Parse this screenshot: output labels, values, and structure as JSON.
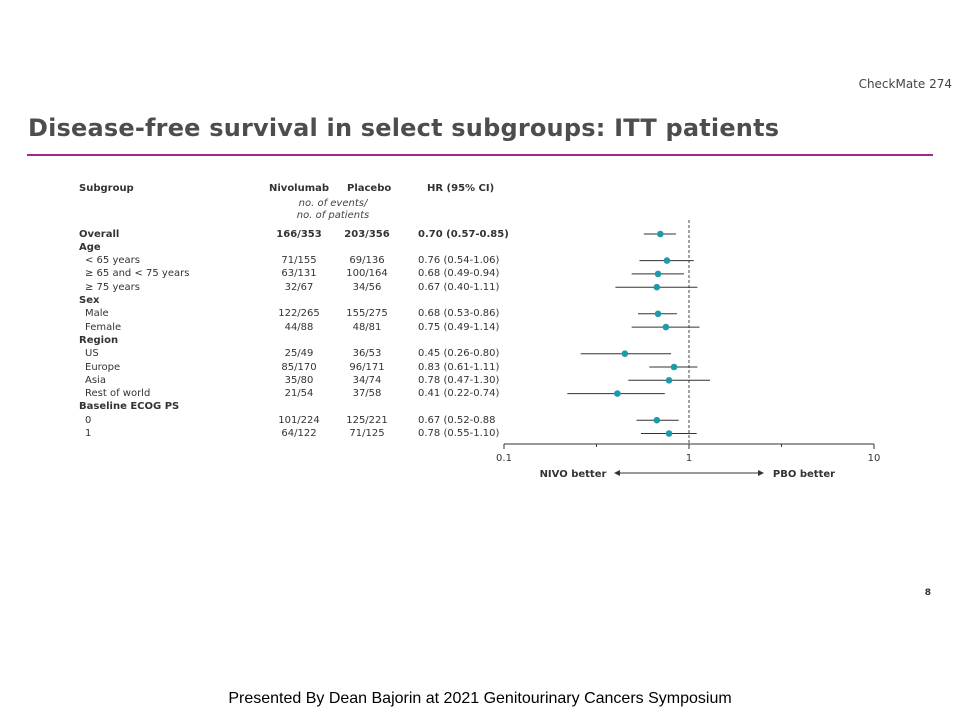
{
  "header": {
    "tag": "CheckMate 274",
    "title": "Disease-free survival in select subgroups: ITT patients"
  },
  "columns": {
    "subgroup": "Subgroup",
    "nivolumab": "Nivolumab",
    "placebo": "Placebo",
    "hr": "HR (95% CI)",
    "subheader_line1": "no. of events/",
    "subheader_line2": "no. of patients"
  },
  "chart_data": {
    "type": "forest",
    "x_scale": "log",
    "xlim": [
      0.1,
      10
    ],
    "x_ticks": [
      "0.1",
      "1",
      "10"
    ],
    "reference_line": 1,
    "direction_labels": {
      "left": "NIVO better",
      "right": "PBO better"
    },
    "rows": [
      {
        "label": "Overall",
        "bold": true,
        "nivo": "166/353",
        "pbo": "203/356",
        "hr_text": "0.70 (0.57-0.85)",
        "hr": 0.7,
        "lo": 0.57,
        "hi": 0.85
      },
      {
        "label": "Age",
        "bold": true,
        "header": true
      },
      {
        "label": "< 65 years",
        "nivo": "71/155",
        "pbo": "69/136",
        "hr_text": "0.76 (0.54-1.06)",
        "hr": 0.76,
        "lo": 0.54,
        "hi": 1.06
      },
      {
        "label": "≥ 65 and < 75 years",
        "nivo": "63/131",
        "pbo": "100/164",
        "hr_text": "0.68 (0.49-0.94)",
        "hr": 0.68,
        "lo": 0.49,
        "hi": 0.94
      },
      {
        "label": "≥ 75 years",
        "nivo": "32/67",
        "pbo": "34/56",
        "hr_text": "0.67 (0.40-1.11)",
        "hr": 0.67,
        "lo": 0.4,
        "hi": 1.11
      },
      {
        "label": "Sex",
        "bold": true,
        "header": true
      },
      {
        "label": "Male",
        "nivo": "122/265",
        "pbo": "155/275",
        "hr_text": "0.68 (0.53-0.86)",
        "hr": 0.68,
        "lo": 0.53,
        "hi": 0.86
      },
      {
        "label": "Female",
        "nivo": "44/88",
        "pbo": "48/81",
        "hr_text": "0.75 (0.49-1.14)",
        "hr": 0.75,
        "lo": 0.49,
        "hi": 1.14
      },
      {
        "label": "Region",
        "bold": true,
        "header": true
      },
      {
        "label": "US",
        "nivo": "25/49",
        "pbo": "36/53",
        "hr_text": "0.45 (0.26-0.80)",
        "hr": 0.45,
        "lo": 0.26,
        "hi": 0.8
      },
      {
        "label": "Europe",
        "nivo": "85/170",
        "pbo": "96/171",
        "hr_text": "0.83 (0.61-1.11)",
        "hr": 0.83,
        "lo": 0.61,
        "hi": 1.11
      },
      {
        "label": "Asia",
        "nivo": "35/80",
        "pbo": "34/74",
        "hr_text": "0.78 (0.47-1.30)",
        "hr": 0.78,
        "lo": 0.47,
        "hi": 1.3
      },
      {
        "label": "Rest of world",
        "nivo": "21/54",
        "pbo": "37/58",
        "hr_text": "0.41 (0.22-0.74)",
        "hr": 0.41,
        "lo": 0.22,
        "hi": 0.74
      },
      {
        "label": "Baseline ECOG PS",
        "bold": true,
        "header": true
      },
      {
        "label": "0",
        "nivo": "101/224",
        "pbo": "125/221",
        "hr_text": "0.67 (0.52-0.88",
        "hr": 0.67,
        "lo": 0.52,
        "hi": 0.88
      },
      {
        "label": "1",
        "nivo": "64/122",
        "pbo": "71/125",
        "hr_text": "0.78 (0.55-1.10)",
        "hr": 0.78,
        "lo": 0.55,
        "hi": 1.1
      }
    ],
    "colors": {
      "point": "#1e9aaa",
      "ci": "#333333",
      "reference": "#444444"
    }
  },
  "page_number": "8",
  "footer": "Presented By Dean Bajorin at 2021 Genitourinary  Cancers Symposium"
}
